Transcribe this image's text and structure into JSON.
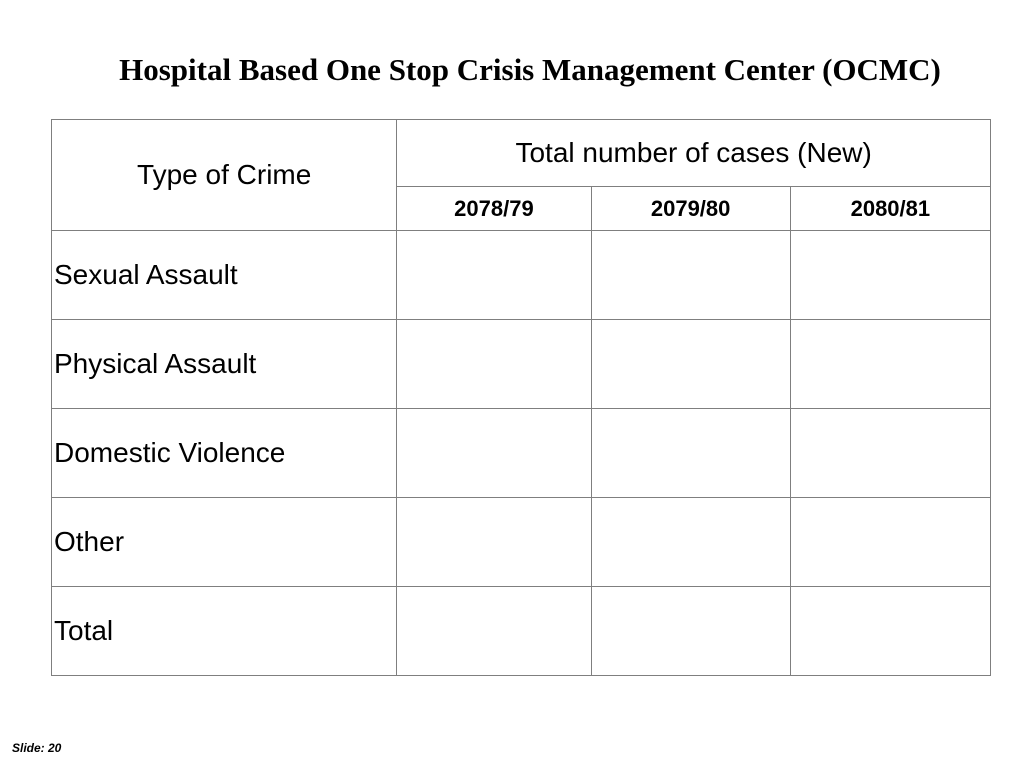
{
  "slide": {
    "title": "Hospital Based One Stop Crisis Management Center (OCMC)",
    "footer": "Slide: 20"
  },
  "table": {
    "type_header": "Type of Crime",
    "group_header": "Total number of cases (New)",
    "years": [
      "2078/79",
      "2079/80",
      "2080/81"
    ],
    "rows": [
      {
        "label": "Sexual Assault",
        "values": [
          "",
          "",
          ""
        ]
      },
      {
        "label": "Physical Assault",
        "values": [
          "",
          "",
          ""
        ]
      },
      {
        "label": "Domestic Violence",
        "values": [
          "",
          "",
          ""
        ]
      },
      {
        "label": "Other",
        "values": [
          "",
          "",
          ""
        ]
      },
      {
        "label": "Total",
        "values": [
          "",
          "",
          ""
        ]
      }
    ]
  }
}
